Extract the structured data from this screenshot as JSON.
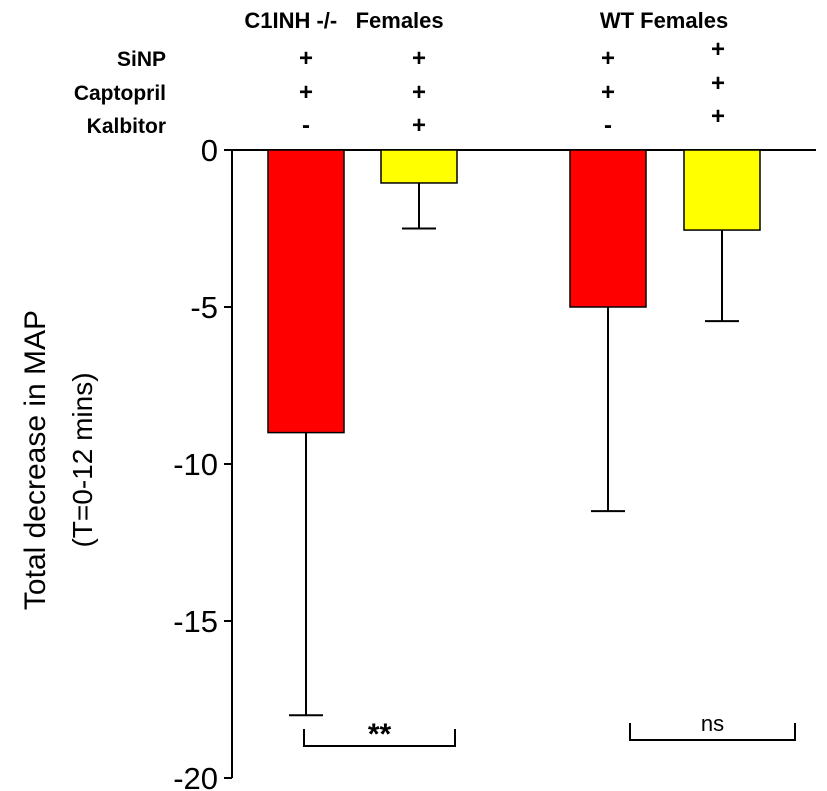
{
  "chart_data": {
    "type": "bar",
    "groups": [
      {
        "label": "C1INH -/-   Females",
        "bars": [
          0,
          1
        ]
      },
      {
        "label": "WT Females",
        "bars": [
          2,
          3
        ]
      }
    ],
    "treatment_rows": [
      {
        "label": "SiNP",
        "values": [
          "+",
          "+",
          "+",
          "+"
        ]
      },
      {
        "label": "Captopril",
        "values": [
          "+",
          "+",
          "+",
          "+"
        ]
      },
      {
        "label": "Kalbitor",
        "values": [
          "-",
          "+",
          "-",
          "+"
        ]
      }
    ],
    "values": [
      -9.0,
      -1.05,
      -5.0,
      -2.55
    ],
    "error_low": [
      -18.0,
      -2.5,
      -11.5,
      -5.45
    ],
    "bar_colors": [
      "#ff0000",
      "#ffff00",
      "#ff0000",
      "#ffff00"
    ],
    "ylabel_line1": "Total decrease in  MAP",
    "ylabel_line2": "(T=0-12 mins)",
    "ylim": [
      -20,
      0
    ],
    "yticks": [
      {
        "value": 0,
        "label": "0"
      },
      {
        "value": -5,
        "label": "-5"
      },
      {
        "value": -10,
        "label": "-10"
      },
      {
        "value": -15,
        "label": "-15"
      },
      {
        "value": -20,
        "label": "-20"
      }
    ],
    "significance": [
      {
        "bars": [
          0,
          1
        ],
        "label": "**"
      },
      {
        "bars": [
          2,
          3
        ],
        "label": "ns"
      }
    ],
    "grid": false,
    "legend": "none"
  }
}
